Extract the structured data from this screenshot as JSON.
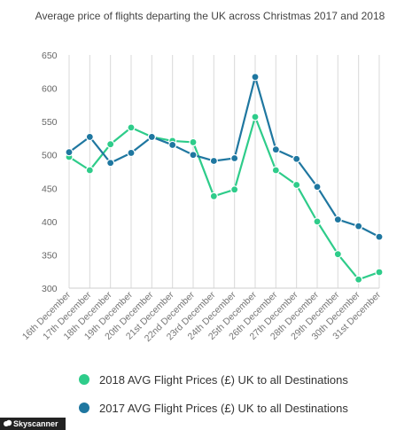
{
  "chart_data": {
    "type": "line",
    "title": "Average price of flights departing the UK  across Christmas  2017 and 2018",
    "categories": [
      "16th December",
      "17th December",
      "18th December",
      "19th December",
      "20th December",
      "21st December",
      "22nd December",
      "23rd December",
      "24th December",
      "25th December",
      "26th December",
      "27th December",
      "28th December",
      "29th December",
      "30th December",
      "31st December"
    ],
    "yticks": [
      300,
      350,
      400,
      450,
      500,
      550,
      600,
      650
    ],
    "ylim": [
      300,
      650
    ],
    "grid": "vertical",
    "legend_position": "bottom",
    "series": [
      {
        "name": "2018 AVG Flight Prices (£) UK to all Destinations",
        "color": "#2ecc8a",
        "values": [
          497,
          477,
          516,
          541,
          527,
          521,
          519,
          438,
          448,
          557,
          477,
          455,
          400,
          351,
          313,
          324
        ]
      },
      {
        "name": "2017 AVG Flight Prices (£) UK to all Destinations",
        "color": "#1f77a0",
        "values": [
          504,
          527,
          488,
          503,
          527,
          515,
          500,
          491,
          495,
          617,
          508,
          494,
          452,
          403,
          393,
          377
        ]
      }
    ]
  },
  "credit": {
    "icon": "cloud-icon",
    "text": "Skyscanner"
  }
}
